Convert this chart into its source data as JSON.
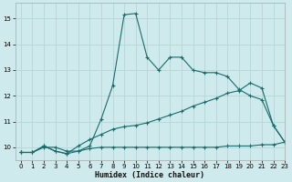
{
  "xlabel": "Humidex (Indice chaleur)",
  "background_color": "#ceeaec",
  "grid_color": "#b8d8da",
  "line_color": "#1a6b6b",
  "xlim": [
    -0.5,
    23
  ],
  "ylim": [
    9.5,
    15.6
  ],
  "xticks": [
    0,
    1,
    2,
    3,
    4,
    5,
    6,
    7,
    8,
    9,
    10,
    11,
    12,
    13,
    14,
    15,
    16,
    17,
    18,
    19,
    20,
    21,
    22,
    23
  ],
  "yticks": [
    10,
    11,
    12,
    13,
    14,
    15
  ],
  "line1_x": [
    0,
    1,
    2,
    3,
    4,
    5,
    6,
    7,
    8,
    9,
    10,
    11,
    12,
    13,
    14,
    15,
    16,
    17,
    18,
    19,
    20,
    21,
    22,
    23
  ],
  "line1_y": [
    9.8,
    9.8,
    10.0,
    10.0,
    9.85,
    9.85,
    10.05,
    11.1,
    12.4,
    15.15,
    15.2,
    13.5,
    13.0,
    13.5,
    13.5,
    13.0,
    12.9,
    12.9,
    12.75,
    12.25,
    12.0,
    11.85,
    10.85,
    10.2
  ],
  "line2_x": [
    0,
    1,
    2,
    3,
    4,
    5,
    6,
    7,
    8,
    9,
    10,
    11,
    12,
    13,
    14,
    15,
    16,
    17,
    18,
    19,
    20,
    21,
    22,
    23
  ],
  "line2_y": [
    9.8,
    9.8,
    10.05,
    9.85,
    9.75,
    10.05,
    10.3,
    10.5,
    10.7,
    10.8,
    10.85,
    10.95,
    11.1,
    11.25,
    11.4,
    11.6,
    11.75,
    11.9,
    12.1,
    12.2,
    12.5,
    12.3,
    10.85,
    10.2
  ],
  "line3_x": [
    0,
    1,
    2,
    3,
    4,
    5,
    6,
    7,
    8,
    9,
    10,
    11,
    12,
    13,
    14,
    15,
    16,
    17,
    18,
    19,
    20,
    21,
    22,
    23
  ],
  "line3_y": [
    9.8,
    9.8,
    10.05,
    9.85,
    9.75,
    9.85,
    9.95,
    10.0,
    10.0,
    10.0,
    10.0,
    10.0,
    10.0,
    10.0,
    10.0,
    10.0,
    10.0,
    10.0,
    10.05,
    10.05,
    10.05,
    10.1,
    10.1,
    10.2
  ]
}
